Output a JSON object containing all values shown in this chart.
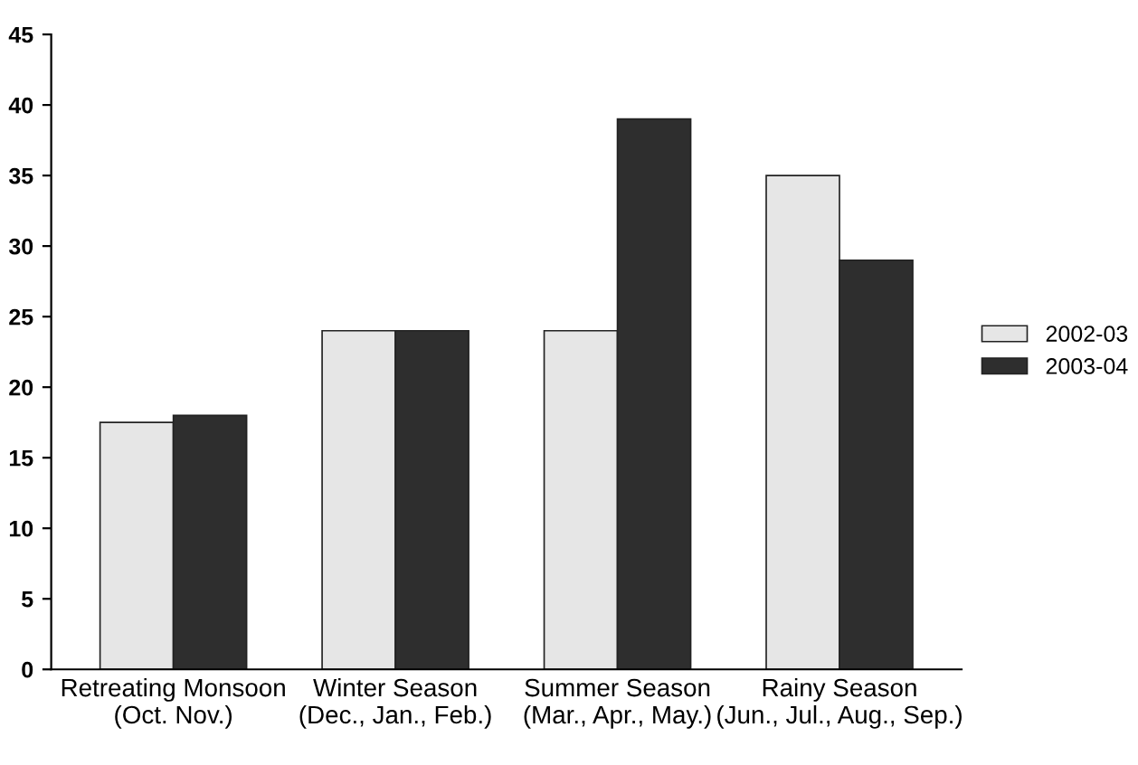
{
  "chart_data": {
    "type": "bar",
    "categories": [
      "Retreating Monsoon\n(Oct. Nov.)",
      "Winter Season\n(Dec., Jan., Feb.)",
      "Summer Season\n(Mar., Apr., May.)",
      "Rainy Season\n(Jun., Jul., Aug., Sep.)"
    ],
    "series": [
      {
        "name": "2002-03",
        "color": "#e6e6e6",
        "values": [
          17.5,
          24,
          24,
          35
        ]
      },
      {
        "name": "2003-04",
        "color": "#2e2e2e",
        "values": [
          18,
          24,
          39,
          29
        ]
      }
    ],
    "ylim": [
      0,
      45
    ],
    "yticks": [
      0,
      5,
      10,
      15,
      20,
      25,
      30,
      35,
      40,
      45
    ],
    "grid": false,
    "legend": "right"
  }
}
